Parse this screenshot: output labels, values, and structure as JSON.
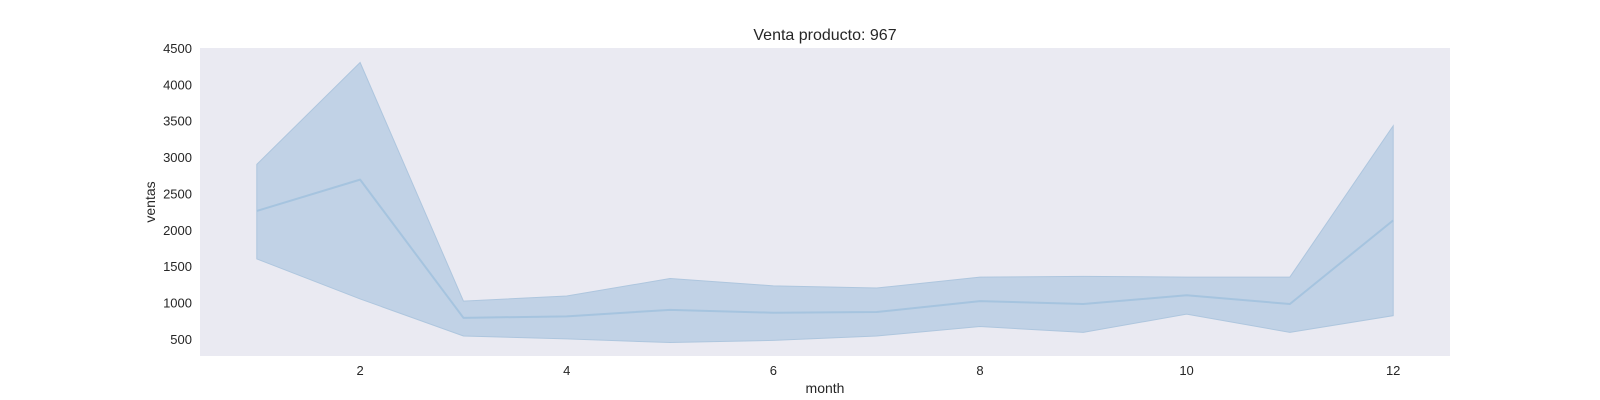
{
  "chart_data": {
    "type": "line",
    "title": "Venta producto: 967",
    "xlabel": "month",
    "ylabel": "ventas",
    "xlim": [
      0.45,
      12.55
    ],
    "ylim": [
      265,
      4500
    ],
    "x_ticks": [
      2,
      4,
      6,
      8,
      10,
      12
    ],
    "y_ticks": [
      500,
      1000,
      1500,
      2000,
      2500,
      3000,
      3500,
      4000,
      4500
    ],
    "grid": false,
    "series": [
      {
        "x": [
          1,
          2,
          3,
          4,
          5,
          6,
          7,
          8,
          9,
          10,
          11,
          12
        ],
        "values": [
          2260,
          2690,
          790,
          810,
          900,
          860,
          870,
          1020,
          980,
          1100,
          980,
          2130
        ],
        "lower": [
          1600,
          1050,
          540,
          500,
          450,
          480,
          540,
          670,
          590,
          840,
          590,
          820
        ],
        "upper": [
          2900,
          4300,
          1020,
          1090,
          1330,
          1230,
          1200,
          1350,
          1360,
          1350,
          1350,
          3430
        ]
      }
    ],
    "colors": {
      "plot_background": "#eaeaf2",
      "line": "#a6c4df",
      "band_fill": "#c1d2e6",
      "band_edge": "#aec6de"
    }
  }
}
